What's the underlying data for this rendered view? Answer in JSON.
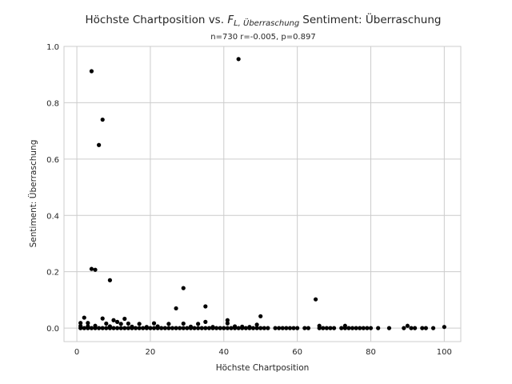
{
  "chart_data": {
    "type": "scatter",
    "title_main": "Höchste Chartposition vs.",
    "title_symbol": "F",
    "title_subscript": "L, Überraschung",
    "title_suffix": "Sentiment: Überraschung",
    "subtitle": "n=730 r=-0.005, p=0.897",
    "xlabel": "Höchste Chartposition",
    "ylabel": "Sentiment: Überraschung",
    "xlim": [
      -3.5,
      104.5
    ],
    "ylim": [
      -0.048,
      1.0
    ],
    "xticks": [
      0,
      20,
      40,
      60,
      80,
      100
    ],
    "xtick_labels": [
      "0",
      "20",
      "40",
      "60",
      "80",
      "100"
    ],
    "yticks": [
      0.0,
      0.2,
      0.4,
      0.6,
      0.8,
      1.0
    ],
    "ytick_labels": [
      "0.0",
      "0.2",
      "0.4",
      "0.6",
      "0.8",
      "1.0"
    ],
    "grid": true,
    "marker_color": "#000000",
    "points": [
      [
        44,
        0.955
      ],
      [
        4,
        0.912
      ],
      [
        7,
        0.74
      ],
      [
        6,
        0.65
      ],
      [
        4,
        0.21
      ],
      [
        5,
        0.207
      ],
      [
        9,
        0.17
      ],
      [
        29,
        0.142
      ],
      [
        65,
        0.102
      ],
      [
        35,
        0.077
      ],
      [
        27,
        0.07
      ],
      [
        50,
        0.042
      ],
      [
        2,
        0.037
      ],
      [
        7,
        0.034
      ],
      [
        13,
        0.033
      ],
      [
        10,
        0.028
      ],
      [
        41,
        0.028
      ],
      [
        11,
        0.022
      ],
      [
        35,
        0.022
      ],
      [
        1,
        0.018
      ],
      [
        3,
        0.018
      ],
      [
        8,
        0.016
      ],
      [
        12,
        0.015
      ],
      [
        14,
        0.016
      ],
      [
        17,
        0.015
      ],
      [
        21,
        0.017
      ],
      [
        25,
        0.015
      ],
      [
        29,
        0.016
      ],
      [
        33,
        0.015
      ],
      [
        41,
        0.017
      ],
      [
        49,
        0.012
      ],
      [
        90,
        0.008
      ],
      [
        73,
        0.008
      ],
      [
        66,
        0.008
      ],
      [
        1,
        0.0
      ],
      [
        2,
        0.0
      ],
      [
        3,
        0.0
      ],
      [
        4,
        0.0
      ],
      [
        5,
        0.0
      ],
      [
        6,
        0.0
      ],
      [
        7,
        0.0
      ],
      [
        8,
        0.0
      ],
      [
        9,
        0.0
      ],
      [
        10,
        0.0
      ],
      [
        11,
        0.0
      ],
      [
        12,
        0.0
      ],
      [
        13,
        0.0
      ],
      [
        14,
        0.0
      ],
      [
        15,
        0.0
      ],
      [
        16,
        0.0
      ],
      [
        17,
        0.0
      ],
      [
        18,
        0.0
      ],
      [
        19,
        0.0
      ],
      [
        20,
        0.0
      ],
      [
        21,
        0.0
      ],
      [
        22,
        0.0
      ],
      [
        23,
        0.0
      ],
      [
        24,
        0.0
      ],
      [
        25,
        0.0
      ],
      [
        26,
        0.0
      ],
      [
        27,
        0.0
      ],
      [
        28,
        0.0
      ],
      [
        29,
        0.0
      ],
      [
        30,
        0.0
      ],
      [
        31,
        0.0
      ],
      [
        32,
        0.0
      ],
      [
        33,
        0.0
      ],
      [
        34,
        0.0
      ],
      [
        35,
        0.0
      ],
      [
        36,
        0.0
      ],
      [
        37,
        0.0
      ],
      [
        38,
        0.0
      ],
      [
        39,
        0.0
      ],
      [
        40,
        0.0
      ],
      [
        41,
        0.0
      ],
      [
        42,
        0.0
      ],
      [
        43,
        0.0
      ],
      [
        44,
        0.0
      ],
      [
        45,
        0.0
      ],
      [
        46,
        0.0
      ],
      [
        47,
        0.0
      ],
      [
        48,
        0.0
      ],
      [
        49,
        0.0
      ],
      [
        50,
        0.0
      ],
      [
        51,
        0.0
      ],
      [
        52,
        0.0
      ],
      [
        54,
        0.0
      ],
      [
        55,
        0.0
      ],
      [
        56,
        0.0
      ],
      [
        57,
        0.0
      ],
      [
        58,
        0.0
      ],
      [
        59,
        0.0
      ],
      [
        60,
        0.0
      ],
      [
        62,
        0.0
      ],
      [
        63,
        0.0
      ],
      [
        66,
        0.0
      ],
      [
        67,
        0.0
      ],
      [
        68,
        0.0
      ],
      [
        69,
        0.0
      ],
      [
        70,
        0.0
      ],
      [
        72,
        0.0
      ],
      [
        73,
        0.0
      ],
      [
        74,
        0.0
      ],
      [
        75,
        0.0
      ],
      [
        76,
        0.0
      ],
      [
        77,
        0.0
      ],
      [
        78,
        0.0
      ],
      [
        79,
        0.0
      ],
      [
        80,
        0.0
      ],
      [
        82,
        0.0
      ],
      [
        85,
        0.0
      ],
      [
        89,
        0.0
      ],
      [
        91,
        0.0
      ],
      [
        92,
        0.0
      ],
      [
        94,
        0.0
      ],
      [
        95,
        0.0
      ],
      [
        97,
        0.0
      ],
      [
        100,
        0.004
      ],
      [
        1,
        0.007
      ],
      [
        3,
        0.006
      ],
      [
        5,
        0.008
      ],
      [
        9,
        0.006
      ],
      [
        15,
        0.005
      ],
      [
        19,
        0.004
      ],
      [
        22,
        0.006
      ],
      [
        31,
        0.005
      ],
      [
        37,
        0.004
      ],
      [
        43,
        0.006
      ],
      [
        45,
        0.005
      ],
      [
        47,
        0.004
      ]
    ]
  }
}
